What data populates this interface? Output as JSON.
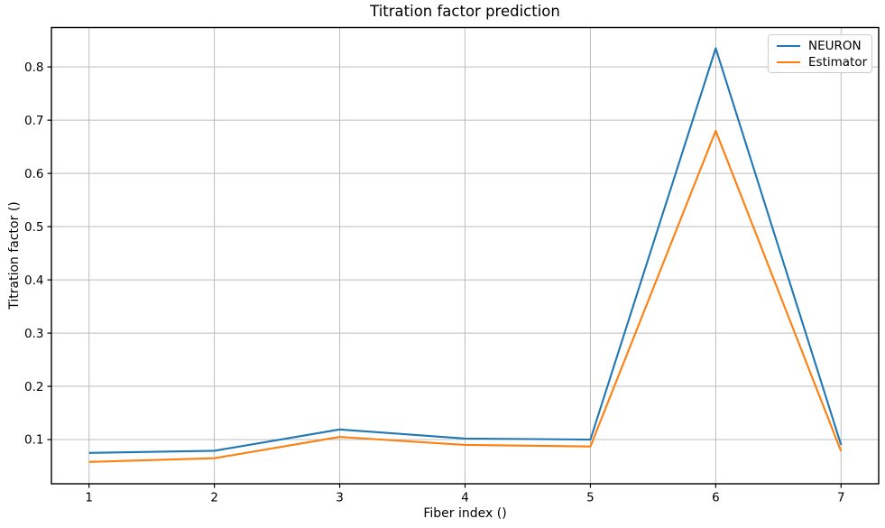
{
  "chart_data": {
    "type": "line",
    "title": "Titration factor prediction",
    "xlabel": "Fiber index ()",
    "ylabel": "Titration factor ()",
    "x": [
      1,
      2,
      3,
      4,
      5,
      6,
      7
    ],
    "series": [
      {
        "name": "NEURON",
        "color": "#1f77b4",
        "values": [
          0.075,
          0.079,
          0.119,
          0.102,
          0.1,
          0.835,
          0.09
        ]
      },
      {
        "name": "Estimator",
        "color": "#ff7f0e",
        "values": [
          0.058,
          0.065,
          0.105,
          0.09,
          0.087,
          0.68,
          0.078
        ]
      }
    ],
    "xticks": [
      1,
      2,
      3,
      4,
      5,
      6,
      7
    ],
    "yticks": [
      0.1,
      0.2,
      0.3,
      0.4,
      0.5,
      0.6,
      0.7,
      0.8
    ],
    "xlim": [
      0.7,
      7.3
    ],
    "ylim": [
      0.017,
      0.874
    ],
    "grid": true,
    "legend_position": "upper right",
    "colors": {
      "grid": "#bdbdbd",
      "spine": "#000000",
      "background": "#ffffff"
    }
  }
}
